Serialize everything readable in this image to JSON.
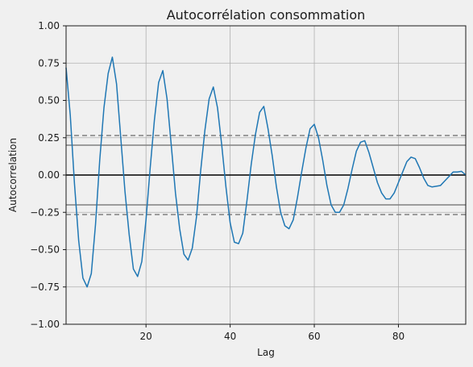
{
  "chart_data": {
    "type": "line",
    "title": "Autocorrélation consommation",
    "xlabel": "Lag",
    "ylabel": "Autocorrelation",
    "xlim": [
      1,
      96
    ],
    "ylim": [
      -1.0,
      1.0
    ],
    "grid": true,
    "x_ticks": [
      20,
      40,
      60,
      80
    ],
    "y_ticks": [
      -1.0,
      -0.75,
      -0.5,
      -0.25,
      0.0,
      0.25,
      0.5,
      0.75,
      1.0
    ],
    "y_tick_labels": [
      "−1.00",
      "−0.75",
      "−0.50",
      "−0.25",
      "0.00",
      "0.25",
      "0.50",
      "0.75",
      "1.00"
    ],
    "confidence_bands": {
      "solid": [
        0.2,
        -0.2
      ],
      "dashed": [
        0.265,
        -0.265
      ]
    },
    "series": [
      {
        "color": "#1f77b4",
        "x": [
          1,
          2,
          3,
          4,
          5,
          6,
          7,
          8,
          9,
          10,
          11,
          12,
          13,
          14,
          15,
          16,
          17,
          18,
          19,
          20,
          21,
          22,
          23,
          24,
          25,
          26,
          27,
          28,
          29,
          30,
          31,
          32,
          33,
          34,
          35,
          36,
          37,
          38,
          39,
          40,
          41,
          42,
          43,
          44,
          45,
          46,
          47,
          48,
          49,
          50,
          51,
          52,
          53,
          54,
          55,
          56,
          57,
          58,
          59,
          60,
          61,
          62,
          63,
          64,
          65,
          66,
          67,
          68,
          69,
          70,
          71,
          72,
          73,
          74,
          75,
          76,
          77,
          78,
          79,
          80,
          81,
          82,
          83,
          84,
          85,
          86,
          87,
          88,
          89,
          90,
          91,
          92,
          93,
          94,
          95,
          96
        ],
        "values": [
          0.72,
          0.4,
          -0.06,
          -0.44,
          -0.69,
          -0.75,
          -0.66,
          -0.33,
          0.1,
          0.45,
          0.68,
          0.79,
          0.61,
          0.25,
          -0.11,
          -0.4,
          -0.63,
          -0.68,
          -0.58,
          -0.3,
          0.05,
          0.37,
          0.62,
          0.7,
          0.51,
          0.2,
          -0.12,
          -0.36,
          -0.53,
          -0.57,
          -0.49,
          -0.28,
          0.03,
          0.3,
          0.51,
          0.59,
          0.45,
          0.2,
          -0.08,
          -0.32,
          -0.45,
          -0.46,
          -0.39,
          -0.17,
          0.07,
          0.27,
          0.42,
          0.46,
          0.31,
          0.13,
          -0.08,
          -0.25,
          -0.34,
          -0.36,
          -0.3,
          -0.15,
          0.02,
          0.18,
          0.31,
          0.34,
          0.25,
          0.1,
          -0.07,
          -0.2,
          -0.25,
          -0.25,
          -0.2,
          -0.09,
          0.04,
          0.16,
          0.22,
          0.23,
          0.15,
          0.05,
          -0.05,
          -0.12,
          -0.16,
          -0.16,
          -0.12,
          -0.05,
          0.02,
          0.09,
          0.12,
          0.11,
          0.05,
          -0.02,
          -0.07,
          -0.08,
          -0.075,
          -0.07,
          -0.04,
          -0.01,
          0.02,
          0.02,
          0.025,
          0.0
        ]
      }
    ]
  }
}
